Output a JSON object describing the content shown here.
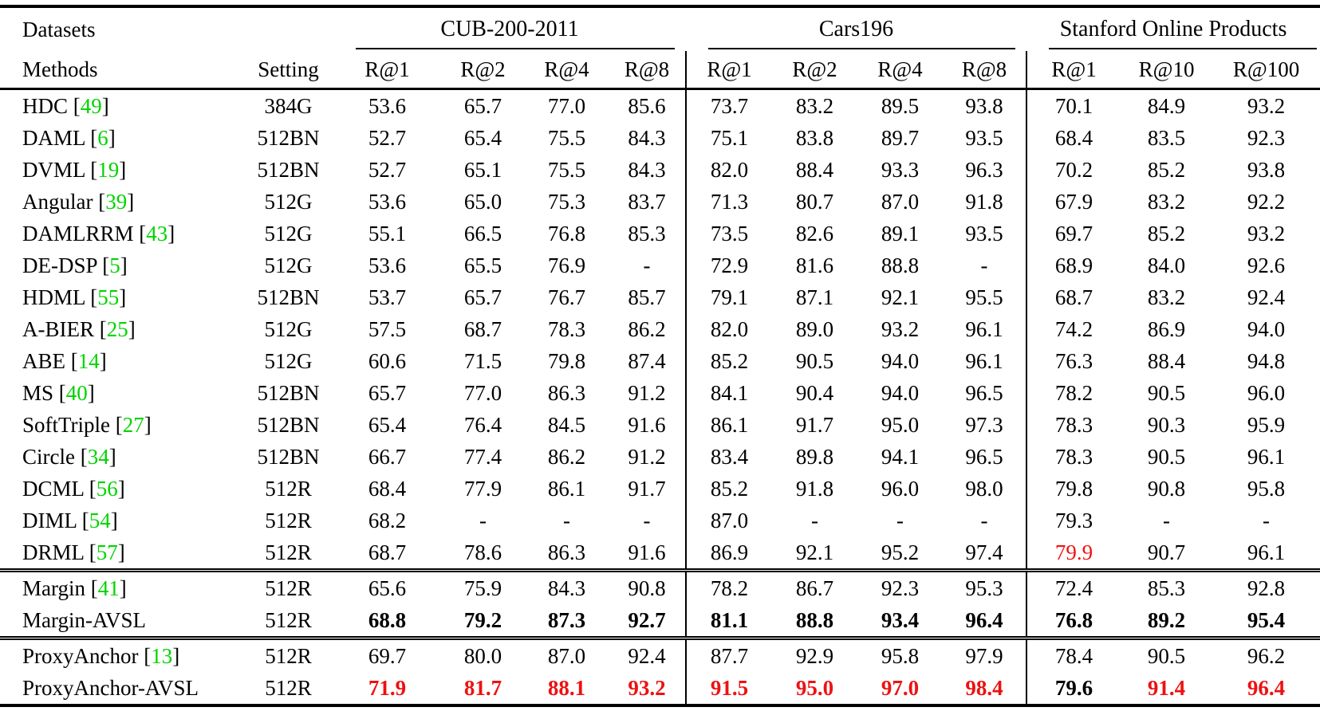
{
  "table": {
    "corner": {
      "datasets": "Datasets",
      "methods": "Methods"
    },
    "setting_label": "Setting",
    "colors": {
      "citation_green": "#00d400",
      "best_red": "#ee1111"
    },
    "groups": [
      {
        "label": "CUB-200-2011",
        "cols": [
          "R@1",
          "R@2",
          "R@4",
          "R@8"
        ]
      },
      {
        "label": "Cars196",
        "cols": [
          "R@1",
          "R@2",
          "R@4",
          "R@8"
        ]
      },
      {
        "label": "Stanford Online Products",
        "cols": [
          "R@1",
          "R@10",
          "R@100"
        ]
      }
    ],
    "sections": [
      {
        "name": "prior-methods",
        "rows": [
          {
            "method": "HDC",
            "cite": "49",
            "setting": "384G",
            "values": [
              "53.6",
              "65.7",
              "77.0",
              "85.6",
              "73.7",
              "83.2",
              "89.5",
              "93.8",
              "70.1",
              "84.9",
              "93.2"
            ]
          },
          {
            "method": "DAML",
            "cite": "6",
            "setting": "512BN",
            "values": [
              "52.7",
              "65.4",
              "75.5",
              "84.3",
              "75.1",
              "83.8",
              "89.7",
              "93.5",
              "68.4",
              "83.5",
              "92.3"
            ]
          },
          {
            "method": "DVML",
            "cite": "19",
            "setting": "512BN",
            "values": [
              "52.7",
              "65.1",
              "75.5",
              "84.3",
              "82.0",
              "88.4",
              "93.3",
              "96.3",
              "70.2",
              "85.2",
              "93.8"
            ]
          },
          {
            "method": "Angular",
            "cite": "39",
            "setting": "512G",
            "values": [
              "53.6",
              "65.0",
              "75.3",
              "83.7",
              "71.3",
              "80.7",
              "87.0",
              "91.8",
              "67.9",
              "83.2",
              "92.2"
            ]
          },
          {
            "method": "DAMLRRM",
            "cite": "43",
            "setting": "512G",
            "values": [
              "55.1",
              "66.5",
              "76.8",
              "85.3",
              "73.5",
              "82.6",
              "89.1",
              "93.5",
              "69.7",
              "85.2",
              "93.2"
            ]
          },
          {
            "method": "DE-DSP",
            "cite": "5",
            "setting": "512G",
            "values": [
              "53.6",
              "65.5",
              "76.9",
              "-",
              "72.9",
              "81.6",
              "88.8",
              "-",
              "68.9",
              "84.0",
              "92.6"
            ]
          },
          {
            "method": "HDML",
            "cite": "55",
            "setting": "512BN",
            "values": [
              "53.7",
              "65.7",
              "76.7",
              "85.7",
              "79.1",
              "87.1",
              "92.1",
              "95.5",
              "68.7",
              "83.2",
              "92.4"
            ]
          },
          {
            "method": "A-BIER",
            "cite": "25",
            "setting": "512G",
            "values": [
              "57.5",
              "68.7",
              "78.3",
              "86.2",
              "82.0",
              "89.0",
              "93.2",
              "96.1",
              "74.2",
              "86.9",
              "94.0"
            ]
          },
          {
            "method": "ABE",
            "cite": "14",
            "setting": "512G",
            "values": [
              "60.6",
              "71.5",
              "79.8",
              "87.4",
              "85.2",
              "90.5",
              "94.0",
              "96.1",
              "76.3",
              "88.4",
              "94.8"
            ]
          },
          {
            "method": "MS",
            "cite": "40",
            "setting": "512BN",
            "values": [
              "65.7",
              "77.0",
              "86.3",
              "91.2",
              "84.1",
              "90.4",
              "94.0",
              "96.5",
              "78.2",
              "90.5",
              "96.0"
            ]
          },
          {
            "method": "SoftTriple",
            "cite": "27",
            "setting": "512BN",
            "values": [
              "65.4",
              "76.4",
              "84.5",
              "91.6",
              "86.1",
              "91.7",
              "95.0",
              "97.3",
              "78.3",
              "90.3",
              "95.9"
            ]
          },
          {
            "method": "Circle",
            "cite": "34",
            "setting": "512BN",
            "values": [
              "66.7",
              "77.4",
              "86.2",
              "91.2",
              "83.4",
              "89.8",
              "94.1",
              "96.5",
              "78.3",
              "90.5",
              "96.1"
            ]
          },
          {
            "method": "DCML",
            "cite": "56",
            "setting": "512R",
            "values": [
              "68.4",
              "77.9",
              "86.1",
              "91.7",
              "85.2",
              "91.8",
              "96.0",
              "98.0",
              "79.8",
              "90.8",
              "95.8"
            ]
          },
          {
            "method": "DIML",
            "cite": "54",
            "setting": "512R",
            "values": [
              "68.2",
              "-",
              "-",
              "-",
              "87.0",
              "-",
              "-",
              "-",
              "79.3",
              "-",
              "-"
            ]
          },
          {
            "method": "DRML",
            "cite": "57",
            "setting": "512R",
            "values": [
              "68.7",
              "78.6",
              "86.3",
              "91.6",
              "86.9",
              "92.1",
              "95.2",
              "97.4",
              {
                "t": "79.9",
                "c": "red"
              },
              "90.7",
              "96.1"
            ]
          }
        ]
      },
      {
        "name": "margin",
        "rows": [
          {
            "method": "Margin",
            "cite": "41",
            "setting": "512R",
            "values": [
              "65.6",
              "75.9",
              "84.3",
              "90.8",
              "78.2",
              "86.7",
              "92.3",
              "95.3",
              "72.4",
              "85.3",
              "92.8"
            ]
          },
          {
            "method": "Margin-AVSL",
            "cite": null,
            "setting": "512R",
            "values": [
              {
                "t": "68.8",
                "b": true
              },
              {
                "t": "79.2",
                "b": true
              },
              {
                "t": "87.3",
                "b": true
              },
              {
                "t": "92.7",
                "b": true
              },
              {
                "t": "81.1",
                "b": true
              },
              {
                "t": "88.8",
                "b": true
              },
              {
                "t": "93.4",
                "b": true
              },
              {
                "t": "96.4",
                "b": true
              },
              {
                "t": "76.8",
                "b": true
              },
              {
                "t": "89.2",
                "b": true
              },
              {
                "t": "95.4",
                "b": true
              }
            ]
          }
        ]
      },
      {
        "name": "proxyanchor",
        "rows": [
          {
            "method": "ProxyAnchor",
            "cite": "13",
            "setting": "512R",
            "values": [
              "69.7",
              "80.0",
              "87.0",
              "92.4",
              "87.7",
              "92.9",
              "95.8",
              "97.9",
              "78.4",
              "90.5",
              "96.2"
            ]
          },
          {
            "method": "ProxyAnchor-AVSL",
            "cite": null,
            "setting": "512R",
            "values": [
              {
                "t": "71.9",
                "b": true,
                "c": "red"
              },
              {
                "t": "81.7",
                "b": true,
                "c": "red"
              },
              {
                "t": "88.1",
                "b": true,
                "c": "red"
              },
              {
                "t": "93.2",
                "b": true,
                "c": "red"
              },
              {
                "t": "91.5",
                "b": true,
                "c": "red"
              },
              {
                "t": "95.0",
                "b": true,
                "c": "red"
              },
              {
                "t": "97.0",
                "b": true,
                "c": "red"
              },
              {
                "t": "98.4",
                "b": true,
                "c": "red"
              },
              {
                "t": "79.6",
                "b": true
              },
              {
                "t": "91.4",
                "b": true,
                "c": "red"
              },
              {
                "t": "96.4",
                "b": true,
                "c": "red"
              }
            ]
          }
        ]
      }
    ]
  }
}
